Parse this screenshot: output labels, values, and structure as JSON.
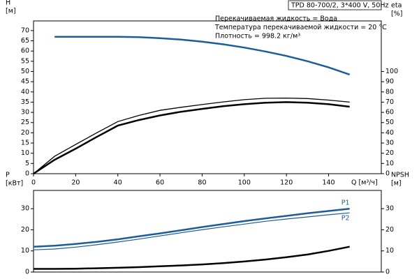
{
  "chart_data": [
    {
      "type": "line",
      "subtitle": "TPD 80-700/2, 3*400 V, 50Hz",
      "annotations": [
        "Перекачиваемая жидкость = Вода",
        "Температура перекачиваемой жидкости = 20 °C",
        "Плотность = 998.2 кг/м³"
      ],
      "xlabel": "Q [м³/ч]",
      "ylabel": [
        "H",
        "[м]"
      ],
      "y2label": [
        "eta",
        "[%]"
      ],
      "x": [
        0,
        10,
        20,
        30,
        40,
        50,
        60,
        70,
        80,
        90,
        100,
        110,
        120,
        130,
        140,
        150
      ],
      "xlim": [
        0,
        165
      ],
      "xticks": [
        0,
        20,
        40,
        60,
        80,
        100,
        120,
        140
      ],
      "ylim": [
        0,
        72
      ],
      "yticks": [
        0,
        5,
        10,
        15,
        20,
        25,
        30,
        35,
        40,
        45,
        50,
        55,
        60,
        65,
        70
      ],
      "y2lim": [
        0,
        144
      ],
      "y2ticks": [
        0,
        10,
        20,
        30,
        40,
        50,
        60,
        70,
        80,
        90,
        100
      ],
      "series": [
        {
          "color": "#1d5c9a",
          "line_width": 2.5,
          "values": [
            null,
            67,
            67,
            67,
            67,
            66.8,
            66.3,
            65.6,
            64.6,
            63.3,
            61.7,
            59.8,
            57.6,
            55,
            52,
            48.5
          ]
        },
        {
          "color": "#000000",
          "line_width": 1.3,
          "axis": "y2",
          "values": [
            0,
            17,
            28.6,
            40,
            51,
            57,
            62,
            65,
            67.6,
            70.2,
            72.4,
            73.8,
            74,
            73.5,
            72,
            70
          ]
        },
        {
          "color": "#000000",
          "line_width": 2.5,
          "axis": "y2",
          "values": [
            0,
            13.6,
            24.5,
            36,
            47,
            52.5,
            57,
            60.6,
            63.4,
            66,
            68,
            69.4,
            70,
            69.5,
            68,
            65.5
          ]
        }
      ]
    },
    {
      "type": "line",
      "ylabel": [
        "P",
        "[кВт]"
      ],
      "y2label": [
        "NPSH",
        "[м]"
      ],
      "x": [
        0,
        10,
        20,
        30,
        40,
        50,
        60,
        70,
        80,
        90,
        100,
        110,
        120,
        130,
        140,
        150
      ],
      "xlim": [
        0,
        165
      ],
      "ylim": [
        0,
        36
      ],
      "yticks": [
        0,
        10,
        20,
        30
      ],
      "y2lim": [
        0,
        36
      ],
      "y2ticks": [
        0,
        10,
        20,
        30
      ],
      "series": [
        {
          "name": "P1",
          "color": "#1d5c9a",
          "line_width": 2.5,
          "values": [
            12,
            12.5,
            13.3,
            14.3,
            15.5,
            16.9,
            18.3,
            19.8,
            21.3,
            22.7,
            24.1,
            25.4,
            26.6,
            27.8,
            28.9,
            30
          ]
        },
        {
          "name": "P2",
          "color": "#1d5c9a",
          "line_width": 1.2,
          "values": [
            10.5,
            10.9,
            11.8,
            12.9,
            14.2,
            15.6,
            17.1,
            18.6,
            20,
            21.4,
            22.7,
            24,
            25.1,
            26.1,
            27.1,
            28
          ]
        },
        {
          "color": "#000000",
          "line_width": 2.5,
          "axis": "y2",
          "values": [
            1.5,
            1.5,
            1.6,
            1.8,
            2,
            2.3,
            2.7,
            3.1,
            3.6,
            4.2,
            5,
            5.9,
            7,
            8.3,
            10,
            12
          ]
        }
      ]
    }
  ]
}
